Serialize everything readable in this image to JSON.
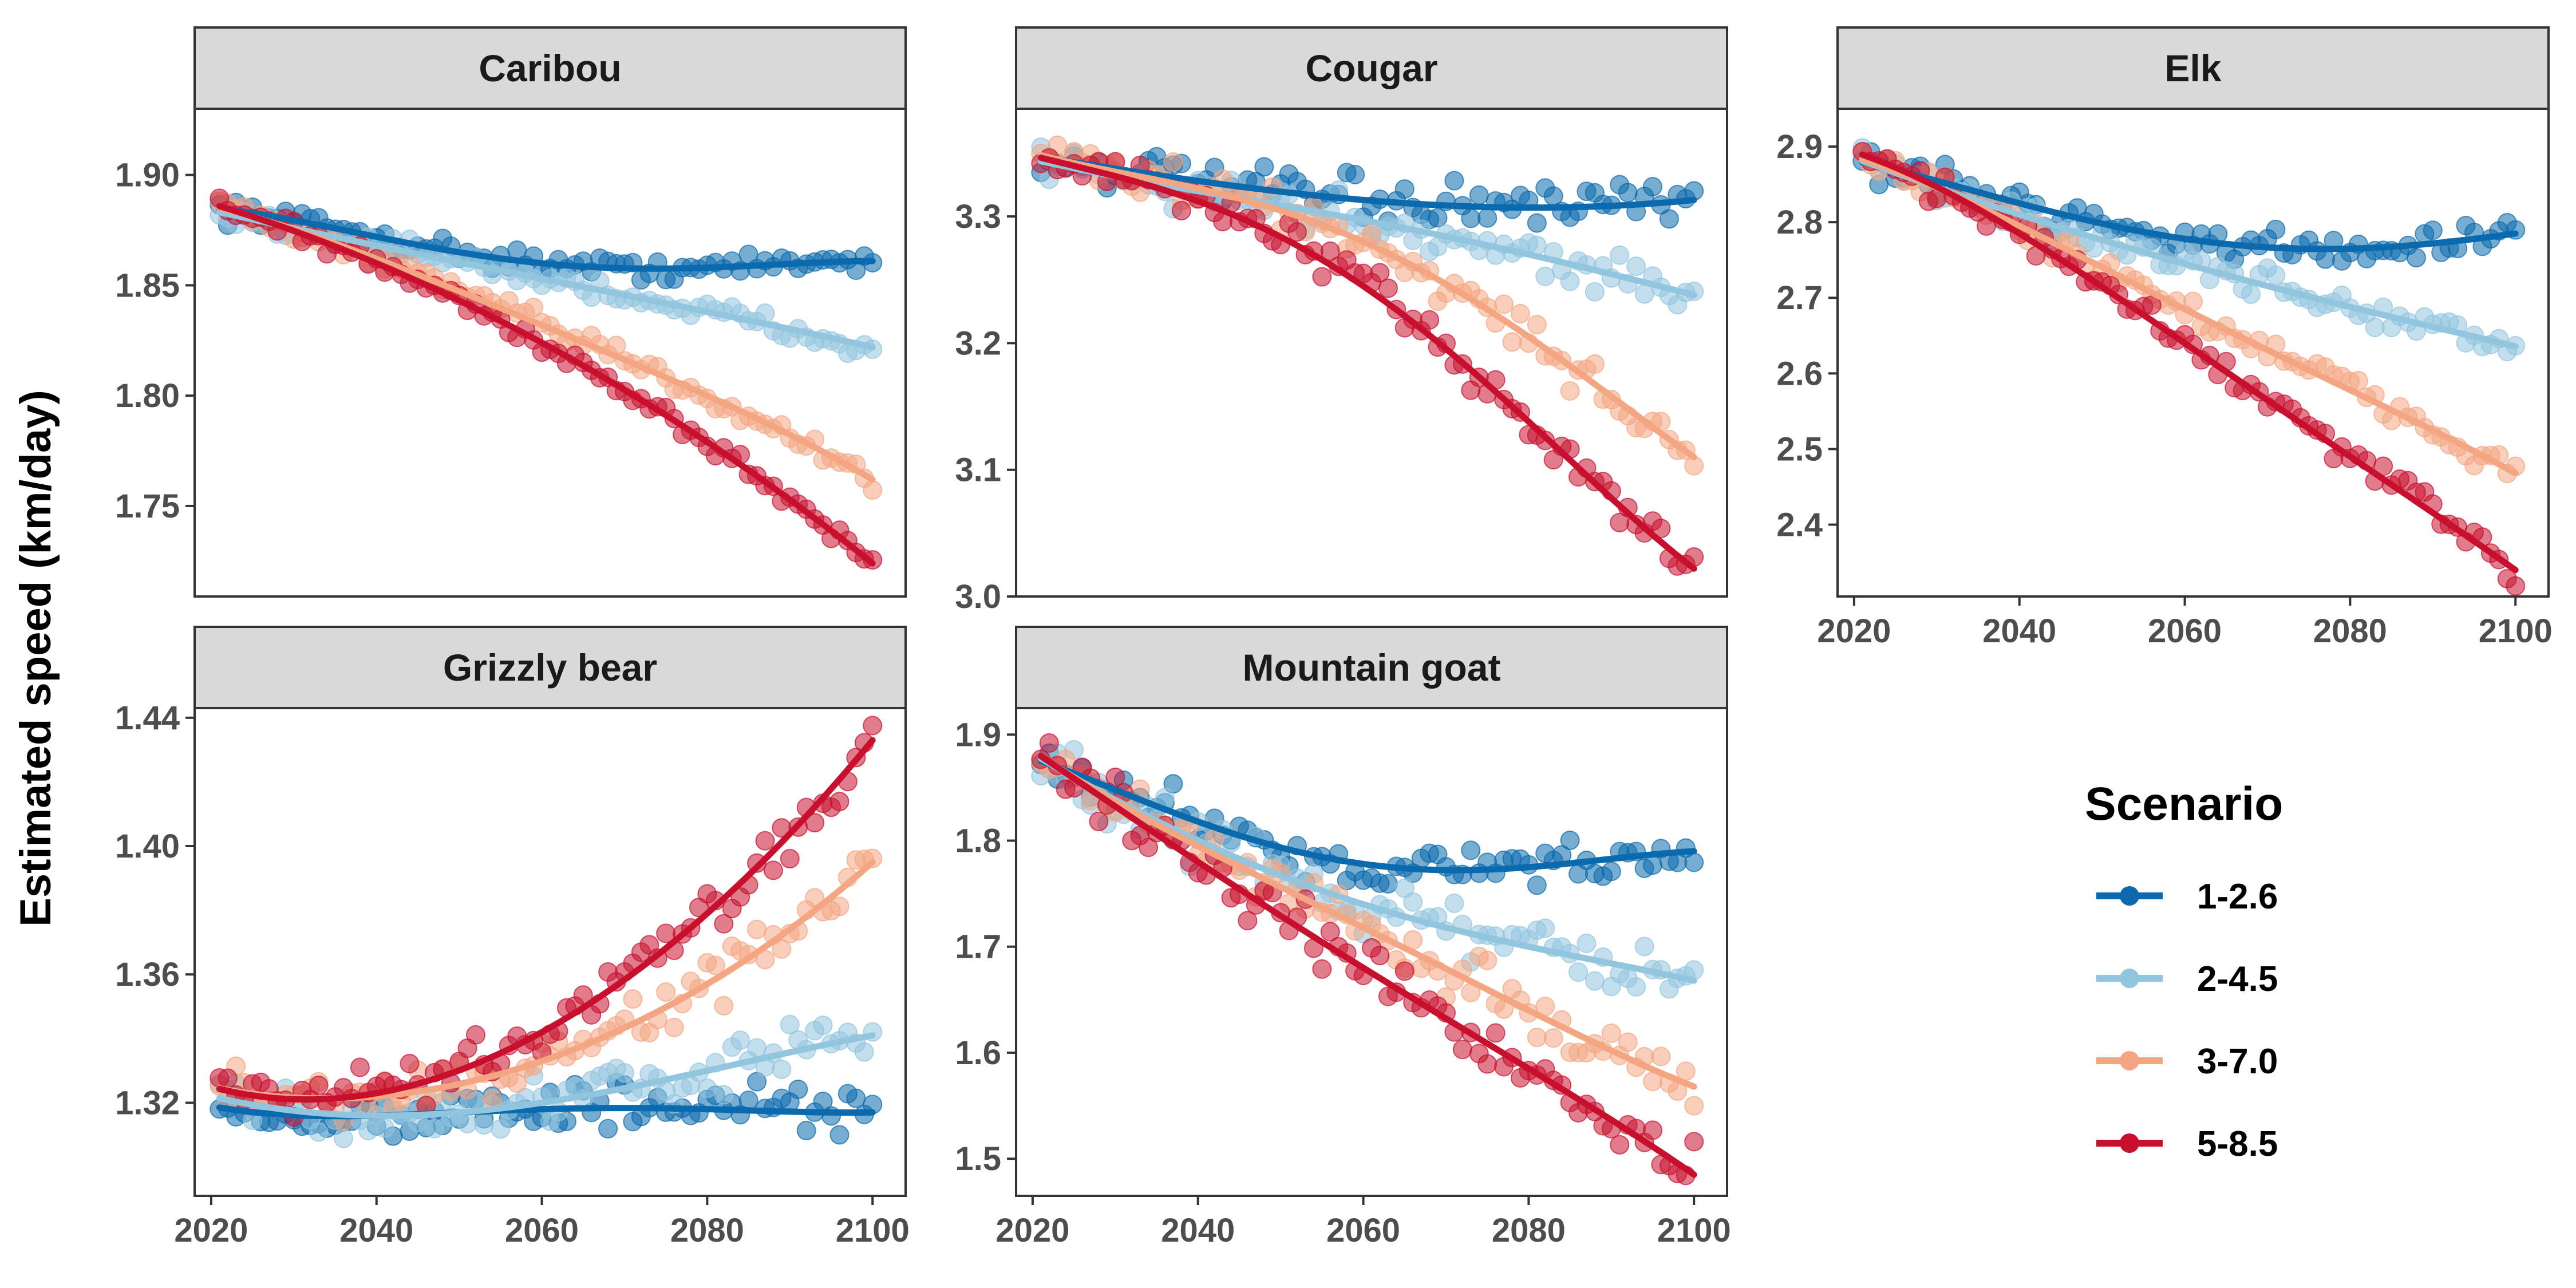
{
  "chart_data": {
    "type": "scatter",
    "ylabel": "Estimated speed (km/day)",
    "xlabel": "",
    "legend": {
      "title": "Scenario",
      "placement": "right",
      "entries": [
        "1-2.6",
        "2-4.5",
        "3-7.0",
        "5-8.5"
      ]
    },
    "colors": {
      "1-2.6": "#0a6aad",
      "2-4.5": "#92c5de",
      "3-7.0": "#f4a582",
      "5-8.5": "#c8102e"
    },
    "x_ticks": [
      "2020",
      "2040",
      "2060",
      "2080",
      "2100"
    ],
    "x_range": [
      2018,
      2104
    ],
    "panels": [
      {
        "title": "Caribou",
        "ylim": [
          1.709,
          1.93
        ],
        "y_ticks": [
          1.75,
          1.8,
          1.85,
          1.9
        ],
        "y_tick_labels": [
          "1.75",
          "1.80",
          "1.85",
          "1.90"
        ],
        "show_x_ticks": false,
        "trend_points": {
          "x": [
            2020,
            2040,
            2060,
            2080,
            2100
          ],
          "1-2.6": [
            1.885,
            1.872,
            1.86,
            1.858,
            1.861
          ],
          "2-4.5": [
            1.884,
            1.868,
            1.853,
            1.838,
            1.822
          ],
          "3-7.0": [
            1.886,
            1.862,
            1.832,
            1.8,
            1.762
          ],
          "5-8.5": [
            1.887,
            1.86,
            1.824,
            1.779,
            1.724
          ]
        }
      },
      {
        "title": "Cougar",
        "ylim": [
          3.0,
          3.385
        ],
        "y_ticks": [
          3.0,
          3.1,
          3.2,
          3.3
        ],
        "y_tick_labels": [
          "3.0",
          "3.1",
          "3.2",
          "3.3"
        ],
        "show_x_ticks": false,
        "trend_points": {
          "x": [
            2020,
            2040,
            2060,
            2080,
            2100
          ],
          "1-2.6": [
            3.348,
            3.328,
            3.313,
            3.307,
            3.313
          ],
          "2-4.5": [
            3.345,
            3.32,
            3.297,
            3.27,
            3.238
          ],
          "3-7.0": [
            3.35,
            3.322,
            3.28,
            3.205,
            3.11
          ],
          "5-8.5": [
            3.348,
            3.312,
            3.245,
            3.138,
            3.022
          ]
        }
      },
      {
        "title": "Elk",
        "ylim": [
          2.305,
          2.95
        ],
        "y_ticks": [
          2.4,
          2.5,
          2.6,
          2.7,
          2.8,
          2.9
        ],
        "y_tick_labels": [
          "2.4",
          "2.5",
          "2.6",
          "2.7",
          "2.8",
          "2.9"
        ],
        "show_x_ticks": true,
        "trend_points": {
          "x": [
            2020,
            2040,
            2060,
            2080,
            2100
          ],
          "1-2.6": [
            2.882,
            2.825,
            2.778,
            2.765,
            2.785
          ],
          "2-4.5": [
            2.885,
            2.81,
            2.745,
            2.688,
            2.636
          ],
          "3-7.0": [
            2.887,
            2.795,
            2.685,
            2.578,
            2.468
          ],
          "5-8.5": [
            2.893,
            2.785,
            2.64,
            2.49,
            2.34
          ]
        }
      },
      {
        "title": "Grizzly bear",
        "ylim": [
          1.291,
          1.443
        ],
        "y_ticks": [
          1.32,
          1.36,
          1.4,
          1.44
        ],
        "y_tick_labels": [
          "1.32",
          "1.36",
          "1.40",
          "1.44"
        ],
        "show_x_ticks": true,
        "trend_points": {
          "x": [
            2020,
            2040,
            2060,
            2080,
            2100
          ],
          "1-2.6": [
            1.319,
            1.316,
            1.318,
            1.318,
            1.317
          ],
          "2-4.5": [
            1.322,
            1.316,
            1.32,
            1.33,
            1.341
          ],
          "3-7.0": [
            1.325,
            1.322,
            1.333,
            1.357,
            1.395
          ],
          "5-8.5": [
            1.325,
            1.323,
            1.342,
            1.379,
            1.433
          ]
        }
      },
      {
        "title": "Mountain goat",
        "ylim": [
          1.465,
          1.925
        ],
        "y_ticks": [
          1.5,
          1.6,
          1.7,
          1.8,
          1.9
        ],
        "y_tick_labels": [
          "1.5",
          "1.6",
          "1.7",
          "1.8",
          "1.9"
        ],
        "show_x_ticks": true,
        "trend_points": {
          "x": [
            2020,
            2040,
            2060,
            2080,
            2100
          ],
          "1-2.6": [
            1.878,
            1.818,
            1.778,
            1.775,
            1.79
          ],
          "2-4.5": [
            1.882,
            1.8,
            1.74,
            1.7,
            1.668
          ],
          "3-7.0": [
            1.885,
            1.795,
            1.718,
            1.64,
            1.568
          ],
          "5-8.5": [
            1.885,
            1.78,
            1.68,
            1.585,
            1.485
          ]
        }
      }
    ]
  }
}
